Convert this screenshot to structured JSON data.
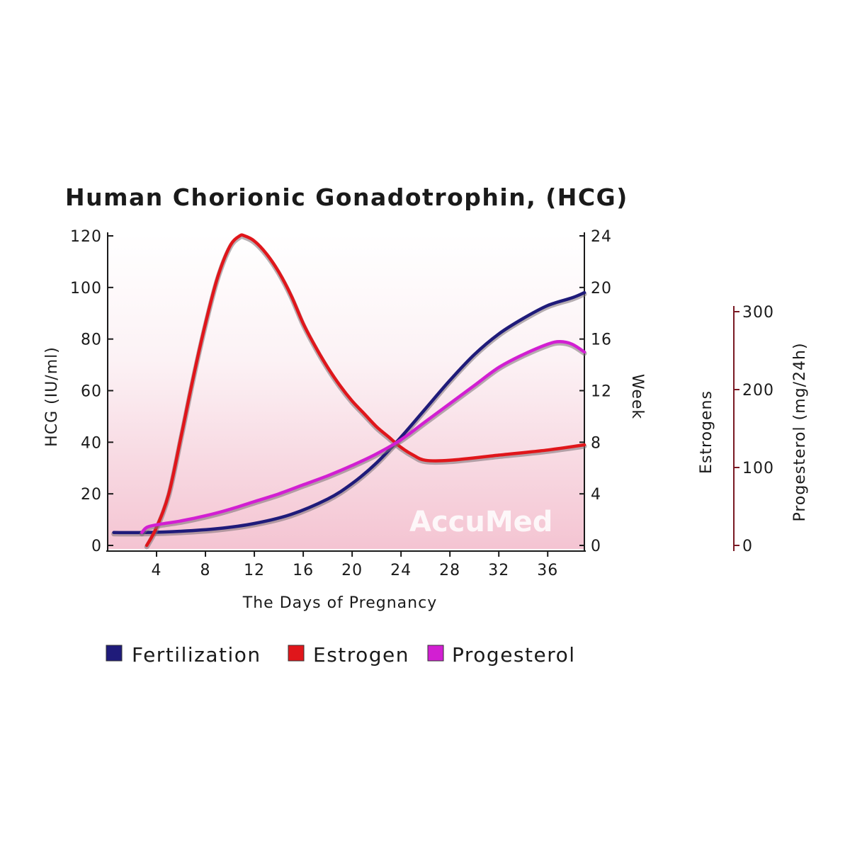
{
  "chart_data": {
    "type": "line",
    "title": "Human Chorionic Gonadotrophin, (HCG)",
    "xlabel": "The Days of Pregnancy",
    "ylabel_left": "HCG (IU/ml)",
    "ylabel_right": "Week",
    "ylabel_far_right_1": "Estrogens",
    "ylabel_far_right_2": "Progesterol (mg/24h)",
    "watermark": "AccuMed",
    "xlim": [
      0,
      39
    ],
    "ylim": [
      0,
      120
    ],
    "x_ticks": [
      4,
      8,
      12,
      16,
      20,
      24,
      28,
      32,
      36
    ],
    "y_ticks_left": [
      0,
      20,
      40,
      60,
      80,
      100,
      120
    ],
    "y_ticks_right": [
      0,
      4,
      8,
      12,
      16,
      20,
      24
    ],
    "y_ticks_far_right": [
      0,
      100,
      200,
      300
    ],
    "colors": {
      "fertilization": "#1f1b7a",
      "estrogen": "#e0161b",
      "progesterol": "#d21fd2",
      "far_axis": "#7a1a24"
    },
    "series": [
      {
        "key": "fertilization",
        "name": "Fertilization",
        "x": [
          0.5,
          3,
          6,
          9,
          12,
          15,
          18,
          20,
          22,
          24,
          26,
          28,
          30,
          32,
          34,
          36,
          38,
          39
        ],
        "values": [
          5,
          5,
          5.5,
          6.5,
          8.5,
          12,
          18,
          24,
          32,
          42,
          53,
          64,
          74,
          82,
          88,
          93,
          96,
          98
        ]
      },
      {
        "key": "estrogen",
        "name": "Estrogen",
        "x": [
          3.2,
          4,
          5,
          6,
          7,
          8,
          9,
          10,
          10.8,
          11.2,
          12,
          13,
          14,
          15,
          16,
          17,
          18,
          19,
          20,
          21,
          22,
          23,
          24,
          25,
          26,
          28,
          32,
          36,
          39
        ],
        "values": [
          0,
          7,
          20,
          42,
          65,
          86,
          104,
          116,
          120,
          120,
          118,
          113,
          106,
          97,
          86,
          77,
          69,
          62,
          56,
          51,
          46,
          42,
          38,
          35,
          33,
          33,
          35,
          37,
          39
        ]
      },
      {
        "key": "progesterol",
        "name": "Progesterol",
        "x": [
          2.8,
          3.2,
          4,
          6,
          8,
          10,
          12,
          14,
          16,
          18,
          20,
          22,
          24,
          26,
          28,
          30,
          32,
          34,
          36,
          37,
          38,
          39
        ],
        "values": [
          5,
          7,
          8,
          9.5,
          11.5,
          14,
          17,
          20,
          23.5,
          27,
          31,
          35.5,
          41,
          48,
          55,
          62,
          69,
          74,
          78,
          79,
          78,
          75
        ]
      }
    ]
  }
}
